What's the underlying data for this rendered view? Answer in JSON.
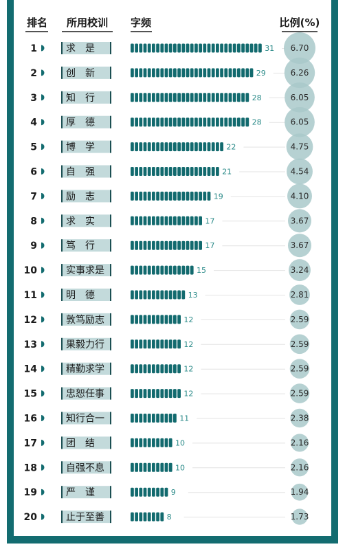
{
  "headers": {
    "rank": "排名",
    "motto": "所用校训",
    "freq": "字频",
    "ratio": "比例(%)"
  },
  "colors": {
    "frame": "#136c70",
    "bar": "#126a6e",
    "bubble": "#a9c9ca",
    "label_bg": "#c3dadb",
    "count_text": "#2a8a88"
  },
  "chart_data": {
    "type": "bar",
    "orientation": "horizontal",
    "rows": [
      {
        "rank": "1",
        "motto": "求　是",
        "count": 31,
        "ratio": "6.70"
      },
      {
        "rank": "2",
        "motto": "创　新",
        "count": 29,
        "ratio": "6.26"
      },
      {
        "rank": "3",
        "motto": "知　行",
        "count": 28,
        "ratio": "6.05"
      },
      {
        "rank": "4",
        "motto": "厚　德",
        "count": 28,
        "ratio": "6.05"
      },
      {
        "rank": "5",
        "motto": "博　学",
        "count": 22,
        "ratio": "4.75"
      },
      {
        "rank": "6",
        "motto": "自　强",
        "count": 21,
        "ratio": "4.54"
      },
      {
        "rank": "7",
        "motto": "励　志",
        "count": 19,
        "ratio": "4.10"
      },
      {
        "rank": "8",
        "motto": "求　实",
        "count": 17,
        "ratio": "3.67"
      },
      {
        "rank": "9",
        "motto": "笃　行",
        "count": 17,
        "ratio": "3.67"
      },
      {
        "rank": "10",
        "motto": "实事求是",
        "count": 15,
        "ratio": "3.24"
      },
      {
        "rank": "11",
        "motto": "明　德",
        "count": 13,
        "ratio": "2.81"
      },
      {
        "rank": "12",
        "motto": "敦笃励志",
        "count": 12,
        "ratio": "2.59"
      },
      {
        "rank": "13",
        "motto": "果毅力行",
        "count": 12,
        "ratio": "2.59"
      },
      {
        "rank": "14",
        "motto": "精勤求学",
        "count": 12,
        "ratio": "2.59"
      },
      {
        "rank": "15",
        "motto": "忠恕任事",
        "count": 12,
        "ratio": "2.59"
      },
      {
        "rank": "16",
        "motto": "知行合一",
        "count": 11,
        "ratio": "2.38"
      },
      {
        "rank": "17",
        "motto": "团　结",
        "count": 10,
        "ratio": "2.16"
      },
      {
        "rank": "18",
        "motto": "自强不息",
        "count": 10,
        "ratio": "2.16"
      },
      {
        "rank": "19",
        "motto": "严　谨",
        "count": 9,
        "ratio": "1.94"
      },
      {
        "rank": "20",
        "motto": "止于至善",
        "count": 8,
        "ratio": "1.73"
      }
    ]
  }
}
